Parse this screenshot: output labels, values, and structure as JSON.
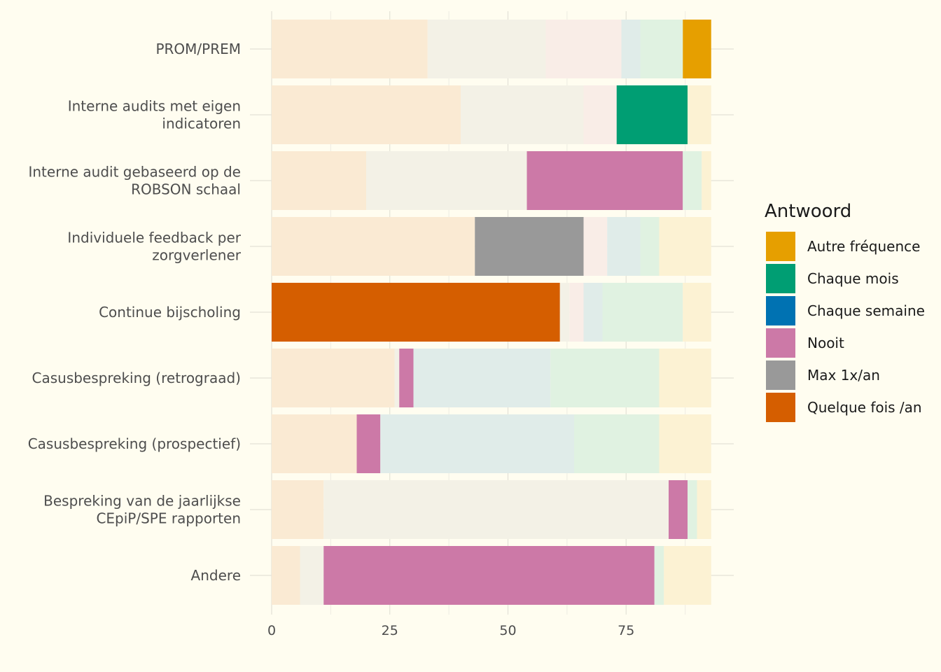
{
  "chart_data": {
    "type": "bar",
    "orientation": "horizontal",
    "stacked": true,
    "categories": [
      "PROM/PREM",
      "Interne audits met eigen indicatoren",
      "Interne audit gebaseerd op de ROBSON schaal",
      "Individuele feedback per zorgverlener",
      "Continue bijscholing",
      "Casusbespreking (retrograad)",
      "Casusbespreking (prospectief)",
      "Bespreking van de jaarlijkse CEpiP/SPE rapporten",
      "Andere"
    ],
    "category_lines": [
      [
        "PROM/PREM"
      ],
      [
        "Interne audits met eigen",
        "indicatoren"
      ],
      [
        "Interne audit gebaseerd op de",
        "ROBSON schaal"
      ],
      [
        "Individuele feedback per",
        "zorgverlener"
      ],
      [
        "Continue bijscholing"
      ],
      [
        "Casusbespreking (retrograad)"
      ],
      [
        "Casusbespreking (prospectief)"
      ],
      [
        "Bespreking van de jaarlijkse",
        "CEpiP/SPE rapporten"
      ],
      [
        "Andere"
      ]
    ],
    "series": [
      {
        "name": "Quelque fois /an",
        "color": "#D55E00",
        "values": [
          33,
          40,
          20,
          43,
          61,
          26,
          18,
          11,
          6
        ]
      },
      {
        "name": "Max 1x/an",
        "color": "#999999",
        "values": [
          25,
          26,
          34,
          23,
          2,
          1,
          0,
          73,
          5
        ]
      },
      {
        "name": "Nooit",
        "color": "#CC79A7",
        "values": [
          16,
          7,
          33,
          5,
          3,
          3,
          5,
          4,
          70
        ]
      },
      {
        "name": "Chaque semaine",
        "color": "#0072B2",
        "values": [
          4,
          0,
          0,
          7,
          4,
          29,
          41,
          0,
          0
        ]
      },
      {
        "name": "Chaque mois",
        "color": "#009E73",
        "values": [
          9,
          15,
          4,
          4,
          17,
          23,
          18,
          2,
          2
        ]
      },
      {
        "name": "Autre fréquence",
        "color": "#E69F00",
        "values": [
          6,
          5,
          2,
          11,
          6,
          11,
          11,
          3,
          10
        ]
      }
    ],
    "highlight": [
      "Autre fréquence",
      "Chaque mois",
      "Nooit",
      "Max 1x/an",
      "Quelque fois /an",
      "Nooit",
      "Nooit",
      "Nooit",
      "Nooit"
    ],
    "xlim": [
      0,
      97
    ],
    "xticks": [
      0,
      25,
      50,
      75
    ],
    "xlabel": "",
    "ylabel": "",
    "grid": true,
    "legend": {
      "title": "Antwoord",
      "position": "right",
      "entries": [
        {
          "name": "Autre fréquence",
          "color": "#E69F00"
        },
        {
          "name": "Chaque mois",
          "color": "#009E73"
        },
        {
          "name": "Chaque semaine",
          "color": "#0072B2"
        },
        {
          "name": "Nooit",
          "color": "#CC79A7"
        },
        {
          "name": "Max 1x/an",
          "color": "#999999"
        },
        {
          "name": "Quelque fois /an",
          "color": "#D55E00"
        }
      ]
    }
  }
}
